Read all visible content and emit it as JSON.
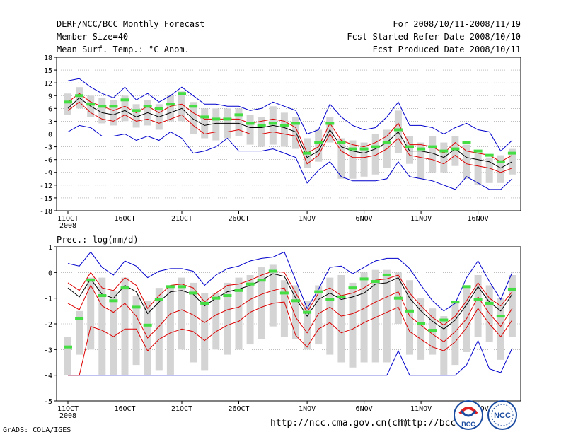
{
  "header": {
    "title": "DERF/NCC/BCC Monthly Forecast",
    "member_size": "Member Size=40",
    "variable": "Mean Surf. Temp.: °C Anom.",
    "period": "For 2008/10/11-2008/11/19",
    "started": "Fcst Started Refer Date 2008/10/10",
    "produced": "Fcst Produced Date 2008/10/11"
  },
  "footer": {
    "grads": "GrADS: COLA/IGES",
    "url1": "http://ncc.cma.gov.cn(ch)",
    "url2": "http://bcc.c",
    "logo_left_text": "BCC",
    "logo_right_text": "NCC"
  },
  "colors": {
    "bar": "#d4d4d4",
    "median": "#44dd44",
    "mean": "#000000",
    "spread": "#dd0000",
    "envelope": "#0000cc"
  },
  "chart_data": [
    {
      "type": "line",
      "title": "Mean Surf. Temp.: °C Anom.",
      "ylim": [
        -18,
        18
      ],
      "yticks": [
        18,
        15,
        12,
        9,
        6,
        3,
        0,
        -3,
        -6,
        -9,
        -12,
        -15,
        -18
      ],
      "x_tick_labels": [
        "11OCT",
        "16OCT",
        "21OCT",
        "26OCT",
        "1NOV",
        "6NOV",
        "11NOV",
        "16NOV"
      ],
      "x_tick_days": [
        1,
        6,
        11,
        16,
        22,
        27,
        32,
        37
      ],
      "year_label": "2008",
      "days": [
        1,
        2,
        3,
        4,
        5,
        6,
        7,
        8,
        9,
        10,
        11,
        12,
        13,
        14,
        15,
        16,
        17,
        18,
        19,
        20,
        21,
        22,
        23,
        24,
        25,
        26,
        27,
        28,
        29,
        30,
        31,
        32,
        33,
        34,
        35,
        36,
        37,
        38,
        39,
        40
      ],
      "series": [
        {
          "name": "max",
          "values": [
            12.5,
            13,
            11,
            9.5,
            8.5,
            11,
            8,
            9.5,
            7.5,
            9,
            11,
            9,
            7,
            7,
            6.5,
            6.5,
            5.5,
            6,
            7.5,
            6.5,
            5.5,
            0,
            1,
            7,
            4,
            2,
            1,
            1.5,
            4,
            7.5,
            2,
            2,
            1.5,
            0,
            1.5,
            2.5,
            1,
            0.5,
            -4,
            -1.5
          ]
        },
        {
          "name": "mean_plus_sd",
          "values": [
            7.5,
            9.5,
            7.5,
            6.5,
            5.5,
            6.5,
            5,
            6.5,
            5,
            6.5,
            7,
            5,
            3.5,
            3.5,
            3.5,
            3.5,
            2.5,
            3,
            3.5,
            3,
            1.5,
            -4.5,
            -3,
            2.5,
            -1.5,
            -2.5,
            -3,
            -2,
            -0.5,
            2.5,
            -2.5,
            -2.5,
            -3,
            -4.5,
            -2,
            -4,
            -4.5,
            -5,
            -6.5,
            -5
          ]
        },
        {
          "name": "mean",
          "values": [
            6,
            8.5,
            6.5,
            5,
            4.5,
            5.5,
            4,
            5,
            4,
            5,
            6,
            3.5,
            2,
            2.5,
            2.5,
            2.5,
            1.5,
            1.5,
            2,
            1.5,
            0.5,
            -5.5,
            -4,
            1,
            -3,
            -4,
            -4.5,
            -3.5,
            -2,
            0.5,
            -4,
            -4,
            -4.5,
            -5.5,
            -3.5,
            -5.5,
            -6,
            -6.5,
            -8,
            -6.5
          ]
        },
        {
          "name": "mean_minus_sd",
          "values": [
            5.5,
            7.5,
            5,
            3.5,
            3,
            4.5,
            3,
            3.5,
            2.5,
            3.5,
            4.5,
            2,
            0,
            0.5,
            0.5,
            1,
            0,
            0,
            0.5,
            0,
            -0.5,
            -7,
            -5,
            0,
            -4,
            -5.5,
            -5.5,
            -5,
            -3.5,
            -1,
            -5,
            -5.5,
            -6,
            -7,
            -5,
            -7,
            -7.5,
            -8,
            -9,
            -8
          ]
        },
        {
          "name": "min",
          "values": [
            0.5,
            2,
            1.5,
            -0.5,
            -0.5,
            0,
            -1.5,
            -0.5,
            -1.5,
            0.5,
            -1,
            -4.5,
            -4,
            -3,
            -1,
            -4,
            -4,
            -4,
            -3.5,
            -4.5,
            -5.5,
            -11.5,
            -8.5,
            -6.5,
            -10,
            -11,
            -11,
            -11,
            -10.5,
            -6.5,
            -10,
            -10.5,
            -11,
            -12,
            -13,
            -10,
            -11.5,
            -13,
            -13,
            -10.5
          ]
        }
      ],
      "boxes": [
        {
          "low": 4.5,
          "high": 9.5
        },
        {
          "low": 6,
          "high": 11
        },
        {
          "low": 4,
          "high": 9
        },
        {
          "low": 2.5,
          "high": 8.5
        },
        {
          "low": 2,
          "high": 8
        },
        {
          "low": 3,
          "high": 9
        },
        {
          "low": 1.5,
          "high": 7
        },
        {
          "low": 2,
          "high": 8
        },
        {
          "low": 1,
          "high": 7
        },
        {
          "low": 3,
          "high": 9
        },
        {
          "low": 3,
          "high": 10
        },
        {
          "low": 0,
          "high": 7.5
        },
        {
          "low": -1,
          "high": 6
        },
        {
          "low": -1.5,
          "high": 6
        },
        {
          "low": -1,
          "high": 6
        },
        {
          "low": -0.5,
          "high": 6
        },
        {
          "low": -2.5,
          "high": 4.5
        },
        {
          "low": -3,
          "high": 4
        },
        {
          "low": -2.5,
          "high": 6.5
        },
        {
          "low": -3,
          "high": 5
        },
        {
          "low": -3.5,
          "high": 4
        },
        {
          "low": -8,
          "high": -1
        },
        {
          "low": -6.5,
          "high": 1
        },
        {
          "low": -2,
          "high": 4
        },
        {
          "low": -10.5,
          "high": -1
        },
        {
          "low": -10.5,
          "high": -1.5
        },
        {
          "low": -10,
          "high": -2
        },
        {
          "low": -9.5,
          "high": 0
        },
        {
          "low": -8,
          "high": 1
        },
        {
          "low": -4.5,
          "high": 5.5
        },
        {
          "low": -7,
          "high": -0.5
        },
        {
          "low": -10.5,
          "high": -2
        },
        {
          "low": -9,
          "high": -0.5
        },
        {
          "low": -9,
          "high": -2
        },
        {
          "low": -7.5,
          "high": -0.5
        },
        {
          "low": -10.5,
          "high": -2.5
        },
        {
          "low": -12,
          "high": -4.5
        },
        {
          "low": -11.5,
          "high": -5.5
        },
        {
          "low": -11.5,
          "high": -5
        },
        {
          "low": -9.5,
          "high": -3.5
        }
      ],
      "medians": [
        7.5,
        9,
        7,
        6.5,
        6.5,
        8,
        5.5,
        6.5,
        6,
        7,
        9.5,
        6.5,
        4,
        3.5,
        3.5,
        4.5,
        2.5,
        2,
        2.5,
        2,
        2.5,
        -4.5,
        -2,
        2.5,
        -2,
        -3.5,
        -3.5,
        -3,
        -2,
        1,
        -3,
        -3.5,
        -3,
        -4,
        -3.5,
        -2,
        -4,
        -5,
        -6.5,
        -4.5
      ]
    },
    {
      "type": "line",
      "title": "Prec.: log(mm/d)",
      "ylim": [
        -5,
        1
      ],
      "yticks": [
        1,
        0,
        -1,
        -2,
        -3,
        -4,
        -5
      ],
      "x_tick_labels": [
        "11OCT",
        "16OCT",
        "21OCT",
        "26OCT",
        "1NOV",
        "6NOV",
        "11NOV",
        "16NOV"
      ],
      "x_tick_days": [
        1,
        6,
        11,
        16,
        22,
        27,
        32,
        37
      ],
      "year_label": "2008",
      "days": [
        1,
        2,
        3,
        4,
        5,
        6,
        7,
        8,
        9,
        10,
        11,
        12,
        13,
        14,
        15,
        16,
        17,
        18,
        19,
        20,
        21,
        22,
        23,
        24,
        25,
        26,
        27,
        28,
        29,
        30,
        31,
        32,
        33,
        34,
        35,
        36,
        37,
        38,
        39,
        40
      ],
      "series": [
        {
          "name": "max",
          "values": [
            0.35,
            0.25,
            0.8,
            0.2,
            -0.1,
            0.45,
            0.25,
            -0.2,
            0.05,
            0.15,
            0.15,
            0.05,
            -0.5,
            -0.1,
            0.15,
            0.25,
            0.45,
            0.55,
            0.6,
            0.8,
            -0.3,
            -1.4,
            -0.65,
            0.2,
            0.25,
            -0.05,
            0.2,
            0.45,
            0.55,
            0.55,
            0.15,
            -0.5,
            -1.1,
            -1.5,
            -1.2,
            -0.2,
            0.45,
            -0.35,
            -1.05,
            0.0
          ]
        },
        {
          "name": "mean_plus_sd",
          "values": [
            -0.4,
            -0.7,
            0.0,
            -0.6,
            -0.7,
            -0.2,
            -0.5,
            -1.4,
            -0.9,
            -0.5,
            -0.45,
            -0.6,
            -1.15,
            -0.8,
            -0.5,
            -0.45,
            -0.3,
            -0.1,
            0.05,
            0.0,
            -0.8,
            -1.55,
            -0.8,
            -0.6,
            -0.9,
            -0.8,
            -0.6,
            -0.3,
            -0.25,
            -0.1,
            -0.8,
            -1.3,
            -1.75,
            -2.05,
            -1.7,
            -1.1,
            -0.4,
            -1.0,
            -1.3,
            -0.75
          ]
        },
        {
          "name": "mean",
          "values": [
            -0.6,
            -0.95,
            -0.25,
            -0.85,
            -1.0,
            -0.5,
            -0.75,
            -1.6,
            -1.15,
            -0.75,
            -0.7,
            -0.85,
            -1.3,
            -1.0,
            -0.75,
            -0.65,
            -0.5,
            -0.3,
            -0.05,
            -0.15,
            -1.0,
            -1.7,
            -1.05,
            -0.8,
            -1.05,
            -0.95,
            -0.8,
            -0.45,
            -0.4,
            -0.2,
            -1.0,
            -1.5,
            -1.9,
            -2.2,
            -1.85,
            -1.25,
            -0.55,
            -1.15,
            -1.5,
            -0.85
          ]
        },
        {
          "name": "mean_minus_sd",
          "values": [
            -1.2,
            -1.45,
            -0.5,
            -1.3,
            -1.55,
            -1.2,
            -1.7,
            -2.55,
            -2.1,
            -1.6,
            -1.45,
            -1.65,
            -1.95,
            -1.65,
            -1.45,
            -1.35,
            -1.05,
            -0.85,
            -0.7,
            -0.6,
            -1.75,
            -2.35,
            -1.6,
            -1.35,
            -1.7,
            -1.6,
            -1.4,
            -1.15,
            -0.95,
            -0.75,
            -1.7,
            -2.05,
            -2.4,
            -2.7,
            -2.3,
            -1.8,
            -0.95,
            -1.6,
            -2.1,
            -1.4
          ]
        },
        {
          "name": "min",
          "values": [
            -4.0,
            -4.0,
            -4.0,
            -4.0,
            -4.0,
            -4.0,
            -4.0,
            -4.0,
            -4.0,
            -4.0,
            -4.0,
            -4.0,
            -4.0,
            -4.0,
            -4.0,
            -4.0,
            -4.0,
            -4.0,
            -4.0,
            -4.0,
            -4.0,
            -4.0,
            -4.0,
            -4.0,
            -4.0,
            -4.0,
            -4.0,
            -4.0,
            -4.0,
            -3.05,
            -4.0,
            -4.0,
            -4.0,
            -4.0,
            -4.0,
            -3.6,
            -2.65,
            -3.75,
            -3.9,
            -2.95
          ]
        },
        {
          "name": "mean_minus_2sd",
          "values": [
            -4.0,
            -4.0,
            -2.1,
            -2.25,
            -2.5,
            -2.2,
            -2.2,
            -3.05,
            -2.6,
            -2.35,
            -2.2,
            -2.3,
            -2.65,
            -2.3,
            -2.05,
            -1.9,
            -1.55,
            -1.35,
            -1.2,
            -1.15,
            -2.45,
            -2.9,
            -2.2,
            -1.95,
            -2.35,
            -2.2,
            -1.95,
            -1.75,
            -1.55,
            -1.35,
            -2.3,
            -2.6,
            -2.9,
            -3.05,
            -2.7,
            -2.15,
            -1.4,
            -2.0,
            -2.5,
            -1.85
          ]
        }
      ],
      "boxes": [
        {
          "low": -4.0,
          "high": -2.5
        },
        {
          "low": -3.2,
          "high": -1.5
        },
        {
          "low": -3.0,
          "high": -0.2
        },
        {
          "low": -4.0,
          "high": -0.2
        },
        {
          "low": -4.0,
          "high": -0.7
        },
        {
          "low": -4.0,
          "high": -0.2
        },
        {
          "low": -3.6,
          "high": -0.9
        },
        {
          "low": -4.0,
          "high": -1.1
        },
        {
          "low": -3.8,
          "high": -0.6
        },
        {
          "low": -4.0,
          "high": -0.5
        },
        {
          "low": -3.0,
          "high": -0.2
        },
        {
          "low": -3.5,
          "high": -0.4
        },
        {
          "low": -3.8,
          "high": -0.8
        },
        {
          "low": -3.0,
          "high": -0.8
        },
        {
          "low": -3.2,
          "high": -0.4
        },
        {
          "low": -3.0,
          "high": -0.2
        },
        {
          "low": -2.8,
          "high": -0.1
        },
        {
          "low": -2.6,
          "high": 0.2
        },
        {
          "low": -2.1,
          "high": 0.3
        },
        {
          "low": -2.5,
          "high": -0.3
        },
        {
          "low": -2.6,
          "high": -0.5
        },
        {
          "low": -3.0,
          "high": -1.1
        },
        {
          "low": -2.8,
          "high": -0.5
        },
        {
          "low": -3.2,
          "high": -0.2
        },
        {
          "low": -3.5,
          "high": -0.1
        },
        {
          "low": -3.7,
          "high": -0.4
        },
        {
          "low": -3.5,
          "high": 0.0
        },
        {
          "low": -3.5,
          "high": 0.1
        },
        {
          "low": -3.5,
          "high": 0.1
        },
        {
          "low": -2.0,
          "high": 0.0
        },
        {
          "low": -3.2,
          "high": -0.3
        },
        {
          "low": -3.4,
          "high": -1.0
        },
        {
          "low": -3.2,
          "high": -1.4
        },
        {
          "low": -4.0,
          "high": -1.7
        },
        {
          "low": -3.6,
          "high": -1.1
        },
        {
          "low": -3.1,
          "high": -0.6
        },
        {
          "low": -2.5,
          "high": -0.1
        },
        {
          "low": -2.7,
          "high": -0.5
        },
        {
          "low": -3.4,
          "high": -1.0
        },
        {
          "low": -2.5,
          "high": -0.1
        }
      ],
      "medians": [
        -2.9,
        -1.8,
        -0.3,
        -0.9,
        -1.1,
        -0.6,
        -1.35,
        -2.05,
        -1.05,
        -0.55,
        -0.55,
        -0.8,
        -1.2,
        -1.0,
        -0.9,
        -0.7,
        -0.45,
        -0.3,
        0.05,
        -0.8,
        -1.1,
        -1.55,
        -0.75,
        -1.05,
        -0.95,
        -0.6,
        -0.25,
        -0.35,
        -0.1,
        -1.0,
        -1.5,
        -2.0,
        -2.25,
        -1.85,
        -1.15,
        -0.55,
        -1.05,
        -1.2,
        -1.7,
        -0.65
      ]
    }
  ]
}
